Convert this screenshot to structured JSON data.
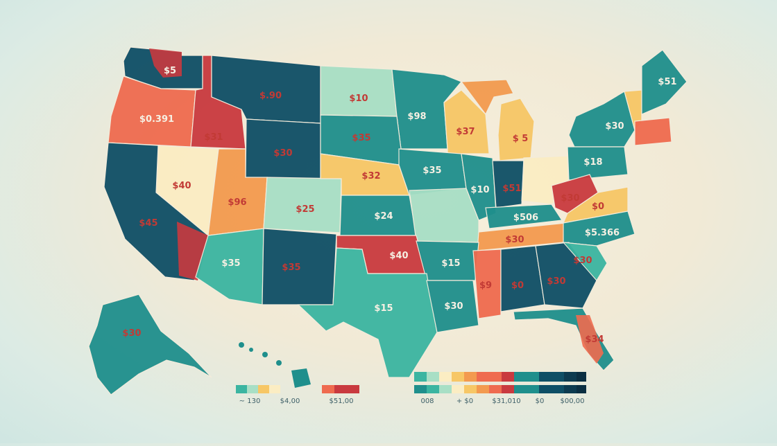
{
  "colors": {
    "teal_dark": "#0f4f66",
    "teal_mid": "#1f8f8c",
    "teal_light": "#3bb5a1",
    "mint": "#a8dfc5",
    "cream": "#fbedc3",
    "yellow": "#f7c766",
    "orange": "#f39a4f",
    "coral": "#ef6b4f",
    "red": "#c93a3f"
  },
  "states": [
    {
      "id": "WA",
      "label": "$5"
    },
    {
      "id": "OR",
      "label": "$0.391"
    },
    {
      "id": "ID",
      "label": "$31"
    },
    {
      "id": "MT",
      "label": "$.90"
    },
    {
      "id": "ND",
      "label": "$10"
    },
    {
      "id": "MN",
      "label": "$98"
    },
    {
      "id": "WI",
      "label": "$37"
    },
    {
      "id": "MI",
      "label": "$ 5"
    },
    {
      "id": "NY",
      "label": "$30"
    },
    {
      "id": "ME",
      "label": "$51"
    },
    {
      "id": "WY",
      "label": "$30"
    },
    {
      "id": "SD",
      "label": "$35"
    },
    {
      "id": "NV",
      "label": "$40"
    },
    {
      "id": "UT",
      "label": "$96"
    },
    {
      "id": "NE",
      "label": "$32"
    },
    {
      "id": "IA",
      "label": "$35"
    },
    {
      "id": "IL",
      "label": "$10"
    },
    {
      "id": "IN",
      "label": "$51"
    },
    {
      "id": "PA",
      "label": "$18"
    },
    {
      "id": "CA",
      "label": "$45"
    },
    {
      "id": "CO",
      "label": "$25"
    },
    {
      "id": "KS",
      "label": "$24"
    },
    {
      "id": "WV",
      "label": "$30"
    },
    {
      "id": "VA",
      "label": "$0"
    },
    {
      "id": "KY",
      "label": "$506"
    },
    {
      "id": "TN",
      "label": "$30"
    },
    {
      "id": "NC",
      "label": "$5.366"
    },
    {
      "id": "AZ",
      "label": "$35"
    },
    {
      "id": "NM",
      "label": "$35"
    },
    {
      "id": "OK",
      "label": "$40"
    },
    {
      "id": "AR",
      "label": "$15"
    },
    {
      "id": "SC",
      "label": "$30"
    },
    {
      "id": "MS",
      "label": "$9"
    },
    {
      "id": "AL",
      "label": "$0"
    },
    {
      "id": "GA",
      "label": "$30"
    },
    {
      "id": "TX",
      "label": "$15"
    },
    {
      "id": "LA",
      "label": "$30"
    },
    {
      "id": "FL",
      "label": "$34"
    },
    {
      "id": "AK",
      "label": "$30"
    }
  ],
  "legend_left": {
    "labels": [
      "~ 130",
      "$4,00",
      "$51,00"
    ]
  },
  "legend_right": {
    "labels": [
      "008",
      "+ $0",
      "$31,010",
      "$0",
      "$00,00"
    ]
  }
}
